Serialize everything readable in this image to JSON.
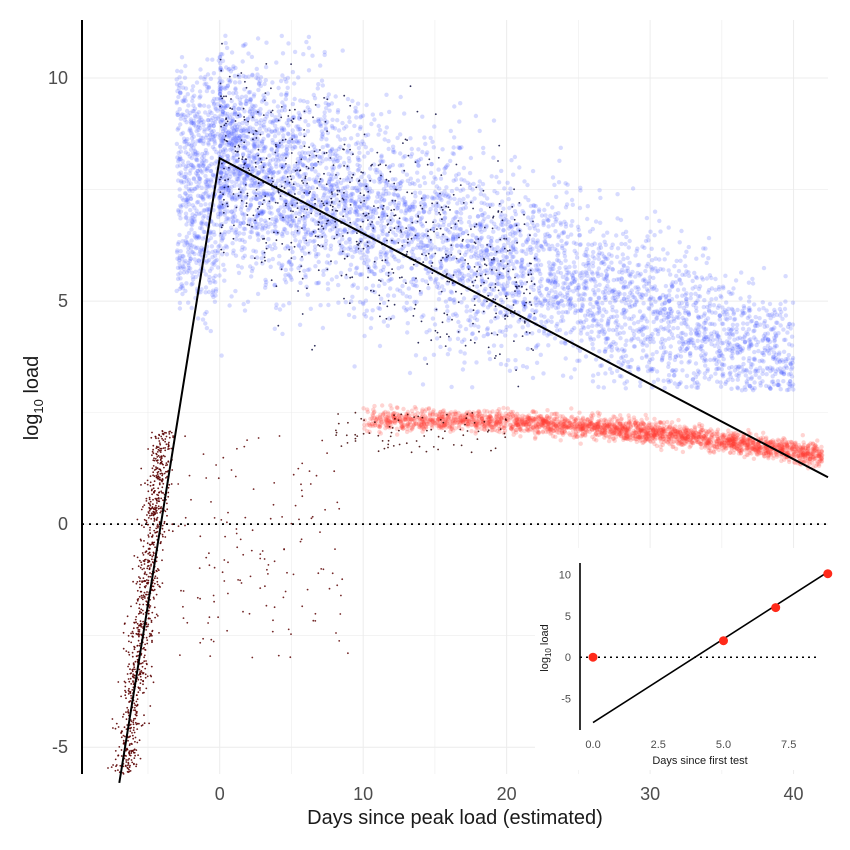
{
  "chart_data": [
    {
      "type": "scatter",
      "xlabel": "Days since peak load (estimated)",
      "ylabel_base": "log",
      "ylabel_sub": "10",
      "ylabel_rest": " load",
      "xlim": [
        -9.6,
        42.4
      ],
      "ylim": [
        -5.6,
        11.3
      ],
      "x_ticks": [
        0,
        10,
        20,
        30,
        40
      ],
      "y_ticks": [
        -5,
        0,
        5,
        10
      ],
      "x_tick_labels": [
        "0",
        "10",
        "20",
        "30",
        "40"
      ],
      "y_tick_labels": [
        "-5",
        "0",
        "5",
        "10"
      ],
      "grid": true,
      "reference_line_y": 0,
      "fit_line": {
        "x": [
          -7,
          0,
          42.4
        ],
        "y": [
          -5.8,
          8.2,
          1.05
        ]
      },
      "series": [
        {
          "color": "#4a5cff",
          "point_opacity": 0.22,
          "description_values": {
            "peak_x_range": [
              -3,
              3
            ],
            "peak_y_range": [
              6,
              10.5
            ],
            "decay_to": {
              "x": 40,
              "y": 4
            }
          }
        },
        {
          "color": "#ff3b30",
          "point_opacity": 0.22,
          "description_values": {
            "plateau_x_range": [
              10,
              42
            ],
            "plateau_y_range": [
              1.2,
              2.5
            ]
          }
        },
        {
          "color": "#5a0000",
          "point_opacity": 0.9,
          "description_values": {
            "rising_x_range": [
              -7.5,
              -2.5
            ],
            "rising_y_range": [
              -5.5,
              2
            ]
          }
        }
      ]
    },
    {
      "type": "scatter",
      "xlabel": "Days since first test",
      "ylabel_base": "log",
      "ylabel_sub": "10",
      "ylabel_rest": " load",
      "xlim": [
        -0.5,
        8.7
      ],
      "ylim": [
        -8.8,
        11.4
      ],
      "x_ticks": [
        0,
        2.5,
        5,
        7.5
      ],
      "y_ticks": [
        -5,
        0,
        5,
        10
      ],
      "x_tick_labels": [
        "0.0",
        "2.5",
        "5.0",
        "7.5"
      ],
      "y_tick_labels": [
        "-5",
        "0",
        "5",
        "10"
      ],
      "reference_line_y": 0,
      "fit_line": {
        "x": [
          0,
          8.9
        ],
        "y": [
          -7.9,
          10.1
        ]
      },
      "points": {
        "x": [
          0,
          5,
          7,
          9
        ],
        "y": [
          0,
          2,
          6,
          10.1
        ]
      },
      "point_color": "#ff2a1a"
    }
  ]
}
